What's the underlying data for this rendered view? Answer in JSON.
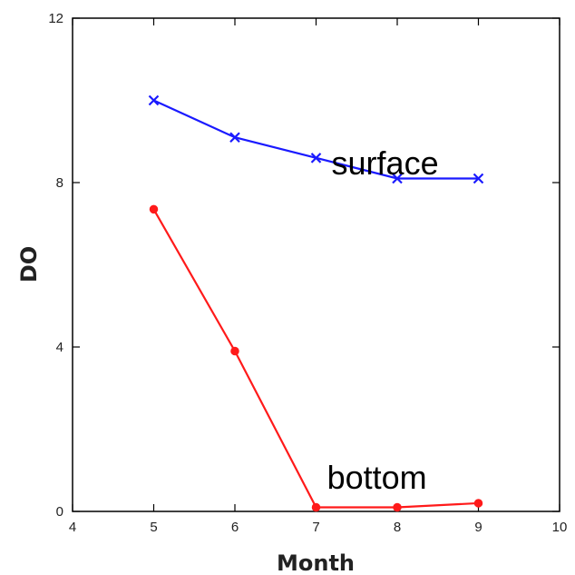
{
  "chart_data": {
    "type": "line",
    "title": "",
    "xlabel": "Month",
    "ylabel": "DO",
    "xlim": [
      4,
      10
    ],
    "ylim": [
      0,
      12
    ],
    "x_ticks": [
      4,
      5,
      6,
      7,
      8,
      9,
      10
    ],
    "y_ticks": [
      0,
      4,
      8,
      12
    ],
    "x": [
      5,
      6,
      7,
      8,
      9
    ],
    "grid": false,
    "series": [
      {
        "values": [
          10.0,
          9.1,
          8.6,
          8.1,
          8.1
        ],
        "color": "#1a1aff",
        "marker": "x"
      },
      {
        "values": [
          7.35,
          3.9,
          0.1,
          0.1,
          0.2
        ],
        "color": "#ff1a1a",
        "marker": "circle"
      }
    ],
    "annotations": [
      {
        "text": "surface",
        "x": 7.85,
        "y": 8.2
      },
      {
        "text": "bottom",
        "x": 7.75,
        "y": 0.55
      }
    ]
  }
}
